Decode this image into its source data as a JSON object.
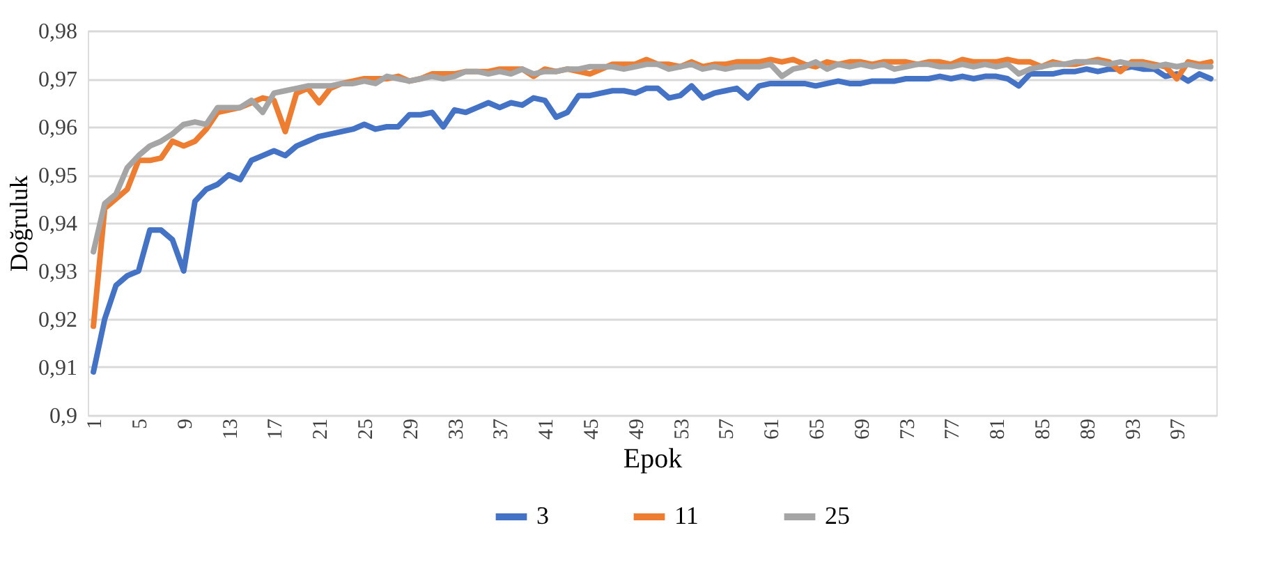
{
  "chart_data": {
    "type": "line",
    "xlabel": "Epok",
    "ylabel": "Doğruluk",
    "categories": [
      "1",
      null,
      null,
      null,
      "5",
      null,
      null,
      null,
      "9",
      null,
      null,
      null,
      "13",
      null,
      null,
      null,
      "17",
      null,
      null,
      null,
      "21",
      null,
      null,
      null,
      "25",
      null,
      null,
      null,
      "29",
      null,
      null,
      null,
      "33",
      null,
      null,
      null,
      "37",
      null,
      null,
      null,
      "41",
      null,
      null,
      null,
      "45",
      null,
      null,
      null,
      "49",
      null,
      null,
      null,
      "53",
      null,
      null,
      null,
      "57",
      null,
      null,
      null,
      "61",
      null,
      null,
      null,
      "65",
      null,
      null,
      null,
      "69",
      null,
      null,
      null,
      "73",
      null,
      null,
      null,
      "77",
      null,
      null,
      null,
      "81",
      null,
      null,
      null,
      "85",
      null,
      null,
      null,
      "89",
      null,
      null,
      null,
      "93",
      null,
      null,
      null,
      "97",
      null,
      null,
      null
    ],
    "ylim": [
      0.9,
      0.98
    ],
    "yticks": [
      {
        "value": 0.9,
        "label": "0,9"
      },
      {
        "value": 0.91,
        "label": "0,91"
      },
      {
        "value": 0.92,
        "label": "0,92"
      },
      {
        "value": 0.93,
        "label": "0,93"
      },
      {
        "value": 0.94,
        "label": "0,94"
      },
      {
        "value": 0.95,
        "label": "0,95"
      },
      {
        "value": 0.96,
        "label": "0,96"
      },
      {
        "value": 0.97,
        "label": "0,97"
      },
      {
        "value": 0.98,
        "label": "0,98"
      }
    ],
    "grid": "y",
    "legend": "bottom",
    "marker": "none",
    "line_style": "solid",
    "series": [
      {
        "name": "3",
        "color": "#4472c4",
        "values": [
          0.909,
          0.92,
          0.927,
          0.929,
          0.93,
          0.9385,
          0.9385,
          0.9365,
          0.93,
          0.9445,
          0.947,
          0.948,
          0.95,
          0.949,
          0.953,
          0.954,
          0.955,
          0.954,
          0.956,
          0.957,
          0.958,
          0.9585,
          0.959,
          0.9595,
          0.9605,
          0.9595,
          0.96,
          0.96,
          0.9625,
          0.9625,
          0.963,
          0.96,
          0.9635,
          0.963,
          0.964,
          0.965,
          0.964,
          0.965,
          0.9645,
          0.966,
          0.9655,
          0.962,
          0.963,
          0.9665,
          0.9665,
          0.967,
          0.9675,
          0.9675,
          0.967,
          0.968,
          0.968,
          0.966,
          0.9665,
          0.9685,
          0.966,
          0.967,
          0.9675,
          0.968,
          0.966,
          0.9685,
          0.969,
          0.969,
          0.969,
          0.969,
          0.9685,
          0.969,
          0.9695,
          0.969,
          0.969,
          0.9695,
          0.9695,
          0.9695,
          0.97,
          0.97,
          0.97,
          0.9705,
          0.97,
          0.9705,
          0.97,
          0.9705,
          0.9705,
          0.97,
          0.9685,
          0.971,
          0.971,
          0.971,
          0.9715,
          0.9715,
          0.972,
          0.9715,
          0.972,
          0.972,
          0.9725,
          0.972,
          0.972,
          0.9705,
          0.971,
          0.9695,
          0.971,
          0.97
        ]
      },
      {
        "name": "11",
        "color": "#ed7d31",
        "values": [
          0.9185,
          0.943,
          0.945,
          0.947,
          0.953,
          0.953,
          0.9535,
          0.957,
          0.956,
          0.957,
          0.9595,
          0.963,
          0.9635,
          0.964,
          0.965,
          0.966,
          0.9655,
          0.959,
          0.967,
          0.968,
          0.965,
          0.968,
          0.969,
          0.9695,
          0.97,
          0.97,
          0.97,
          0.9705,
          0.9695,
          0.97,
          0.971,
          0.971,
          0.971,
          0.9715,
          0.9715,
          0.9715,
          0.972,
          0.972,
          0.972,
          0.9705,
          0.972,
          0.9715,
          0.972,
          0.9715,
          0.971,
          0.972,
          0.973,
          0.973,
          0.973,
          0.974,
          0.973,
          0.973,
          0.9725,
          0.9735,
          0.9725,
          0.973,
          0.973,
          0.9735,
          0.9735,
          0.9735,
          0.974,
          0.9735,
          0.974,
          0.973,
          0.9725,
          0.9735,
          0.973,
          0.9735,
          0.9735,
          0.973,
          0.9735,
          0.9735,
          0.9735,
          0.973,
          0.9735,
          0.9735,
          0.973,
          0.974,
          0.9735,
          0.9735,
          0.9735,
          0.974,
          0.9735,
          0.9735,
          0.9725,
          0.9735,
          0.973,
          0.973,
          0.9735,
          0.974,
          0.9735,
          0.9715,
          0.9735,
          0.9735,
          0.973,
          0.9725,
          0.97,
          0.9735,
          0.973,
          0.9735
        ]
      },
      {
        "name": "25",
        "color": "#a5a5a5",
        "values": [
          0.934,
          0.944,
          0.946,
          0.9515,
          0.954,
          0.956,
          0.957,
          0.9585,
          0.9605,
          0.961,
          0.9605,
          0.964,
          0.964,
          0.964,
          0.9655,
          0.963,
          0.967,
          0.9675,
          0.968,
          0.9685,
          0.9685,
          0.9685,
          0.969,
          0.969,
          0.9695,
          0.969,
          0.9705,
          0.97,
          0.9695,
          0.97,
          0.9705,
          0.97,
          0.9705,
          0.9715,
          0.9715,
          0.971,
          0.9715,
          0.971,
          0.972,
          0.971,
          0.9715,
          0.9715,
          0.972,
          0.972,
          0.9725,
          0.9725,
          0.9725,
          0.972,
          0.9725,
          0.973,
          0.973,
          0.972,
          0.9725,
          0.973,
          0.972,
          0.9725,
          0.972,
          0.9725,
          0.9725,
          0.9725,
          0.973,
          0.9705,
          0.972,
          0.9725,
          0.9735,
          0.972,
          0.973,
          0.9725,
          0.973,
          0.9725,
          0.973,
          0.972,
          0.9725,
          0.973,
          0.973,
          0.9725,
          0.9725,
          0.973,
          0.9725,
          0.973,
          0.9725,
          0.973,
          0.971,
          0.972,
          0.9725,
          0.973,
          0.973,
          0.9735,
          0.9735,
          0.9735,
          0.973,
          0.9735,
          0.973,
          0.973,
          0.9725,
          0.973,
          0.9725,
          0.973,
          0.9725,
          0.9725
        ]
      }
    ]
  }
}
